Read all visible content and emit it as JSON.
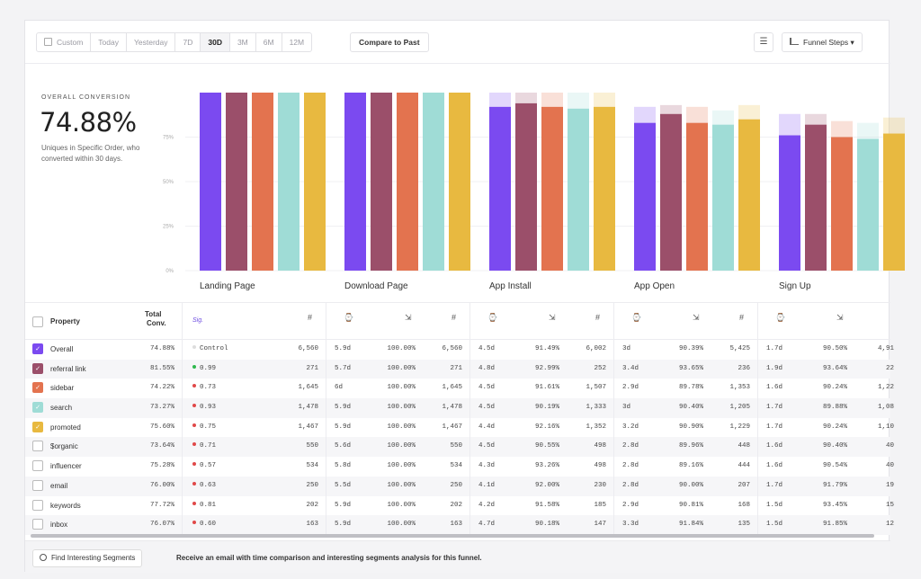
{
  "toolbar": {
    "ranges": [
      "Custom",
      "Today",
      "Yesterday",
      "7D",
      "30D",
      "3M",
      "6M",
      "12M"
    ],
    "active_range": "30D",
    "compare_label": "Compare to Past",
    "funnel_label": "Funnel Steps ▾"
  },
  "summary": {
    "label": "OVERALL CONVERSION",
    "value": "74.88%",
    "description": "Uniques in Specific Order, who converted within 30 days."
  },
  "chart_data": {
    "type": "bar",
    "categories": [
      "Landing Page",
      "Download Page",
      "App Install",
      "App Open",
      "Sign Up"
    ],
    "ylabel": "",
    "yticks": [
      "0%",
      "25%",
      "50%",
      "75%"
    ],
    "ylim": [
      0,
      100
    ],
    "colors": [
      "#7b4af0",
      "#9b4f6a",
      "#e3734f",
      "#9fdcd6",
      "#e8b940"
    ],
    "series": [
      {
        "values": [
          100,
          100,
          92,
          83,
          76
        ],
        "previous": [
          100,
          100,
          100,
          92,
          88
        ]
      },
      {
        "values": [
          100,
          100,
          94,
          88,
          82
        ],
        "previous": [
          100,
          100,
          100,
          93,
          88
        ]
      },
      {
        "values": [
          100,
          100,
          92,
          83,
          75
        ],
        "previous": [
          100,
          100,
          100,
          92,
          84
        ]
      },
      {
        "values": [
          100,
          100,
          91,
          82,
          74
        ],
        "previous": [
          100,
          100,
          100,
          90,
          83
        ]
      },
      {
        "values": [
          100,
          100,
          92,
          85,
          77
        ],
        "previous": [
          100,
          100,
          100,
          93,
          86
        ]
      }
    ]
  },
  "table": {
    "headers": {
      "property": "Property",
      "total": "Total",
      "total2": "Conv.",
      "sig": "Sig."
    },
    "rows": [
      {
        "name": "Overall",
        "color": "#7b4af0",
        "checked": true,
        "total": "74.88%",
        "sig": "Control",
        "sig_color": "#dddddd",
        "steps": [
          [
            "6,560",
            "5.9d",
            "100.00%"
          ],
          [
            "6,560",
            "4.5d",
            "91.49%"
          ],
          [
            "6,002",
            "3d",
            "90.39%"
          ],
          [
            "5,425",
            "1.7d",
            "90.50%"
          ],
          [
            "4,91",
            "",
            " "
          ]
        ]
      },
      {
        "name": "referral link",
        "color": "#9b4f6a",
        "checked": true,
        "total": "81.55%",
        "sig": "0.99",
        "sig_color": "#2eb84d",
        "steps": [
          [
            "271",
            "5.7d",
            "100.00%"
          ],
          [
            "271",
            "4.8d",
            "92.99%"
          ],
          [
            "252",
            "3.4d",
            "93.65%"
          ],
          [
            "236",
            "1.9d",
            "93.64%"
          ],
          [
            "22",
            "",
            ""
          ]
        ]
      },
      {
        "name": "sidebar",
        "color": "#e3734f",
        "checked": true,
        "total": "74.22%",
        "sig": "0.73",
        "sig_color": "#e04848",
        "steps": [
          [
            "1,645",
            "6d",
            "100.00%"
          ],
          [
            "1,645",
            "4.5d",
            "91.61%"
          ],
          [
            "1,507",
            "2.9d",
            "89.78%"
          ],
          [
            "1,353",
            "1.6d",
            "90.24%"
          ],
          [
            "1,22",
            "",
            ""
          ]
        ]
      },
      {
        "name": "search",
        "color": "#9fdcd6",
        "checked": true,
        "total": "73.27%",
        "sig": "0.93",
        "sig_color": "#e04848",
        "steps": [
          [
            "1,478",
            "5.9d",
            "100.00%"
          ],
          [
            "1,478",
            "4.5d",
            "90.19%"
          ],
          [
            "1,333",
            "3d",
            "90.40%"
          ],
          [
            "1,205",
            "1.7d",
            "89.88%"
          ],
          [
            "1,08",
            "",
            ""
          ]
        ]
      },
      {
        "name": "promoted",
        "color": "#e8b940",
        "checked": true,
        "total": "75.60%",
        "sig": "0.75",
        "sig_color": "#e04848",
        "steps": [
          [
            "1,467",
            "5.9d",
            "100.00%"
          ],
          [
            "1,467",
            "4.4d",
            "92.16%"
          ],
          [
            "1,352",
            "3.2d",
            "90.90%"
          ],
          [
            "1,229",
            "1.7d",
            "90.24%"
          ],
          [
            "1,10",
            "",
            ""
          ]
        ]
      },
      {
        "name": "$organic",
        "color": "",
        "checked": false,
        "total": "73.64%",
        "sig": "0.71",
        "sig_color": "#e04848",
        "steps": [
          [
            "550",
            "5.6d",
            "100.00%"
          ],
          [
            "550",
            "4.5d",
            "90.55%"
          ],
          [
            "498",
            "2.8d",
            "89.96%"
          ],
          [
            "448",
            "1.6d",
            "90.40%"
          ],
          [
            "40",
            "",
            ""
          ]
        ]
      },
      {
        "name": "influencer",
        "color": "",
        "checked": false,
        "total": "75.28%",
        "sig": "0.57",
        "sig_color": "#e04848",
        "steps": [
          [
            "534",
            "5.8d",
            "100.00%"
          ],
          [
            "534",
            "4.3d",
            "93.26%"
          ],
          [
            "498",
            "2.8d",
            "89.16%"
          ],
          [
            "444",
            "1.6d",
            "90.54%"
          ],
          [
            "40",
            "",
            ""
          ]
        ]
      },
      {
        "name": "email",
        "color": "",
        "checked": false,
        "total": "76.00%",
        "sig": "0.63",
        "sig_color": "#e04848",
        "steps": [
          [
            "250",
            "5.5d",
            "100.00%"
          ],
          [
            "250",
            "4.1d",
            "92.00%"
          ],
          [
            "230",
            "2.8d",
            "90.00%"
          ],
          [
            "207",
            "1.7d",
            "91.79%"
          ],
          [
            "19",
            "",
            ""
          ]
        ]
      },
      {
        "name": "keywords",
        "color": "",
        "checked": false,
        "total": "77.72%",
        "sig": "0.81",
        "sig_color": "#e04848",
        "steps": [
          [
            "202",
            "5.9d",
            "100.00%"
          ],
          [
            "202",
            "4.2d",
            "91.58%"
          ],
          [
            "185",
            "2.9d",
            "90.81%"
          ],
          [
            "168",
            "1.5d",
            "93.45%"
          ],
          [
            "15",
            "",
            ""
          ]
        ]
      },
      {
        "name": "inbox",
        "color": "",
        "checked": false,
        "total": "76.07%",
        "sig": "0.60",
        "sig_color": "#e04848",
        "steps": [
          [
            "163",
            "5.9d",
            "100.00%"
          ],
          [
            "163",
            "4.7d",
            "90.18%"
          ],
          [
            "147",
            "3.3d",
            "91.84%"
          ],
          [
            "135",
            "1.5d",
            "91.85%"
          ],
          [
            "12",
            "",
            ""
          ]
        ]
      }
    ]
  },
  "footer": {
    "segments_label": "Find Interesting Segments",
    "text": "Receive an email with time comparison and interesting segments analysis for this funnel."
  }
}
